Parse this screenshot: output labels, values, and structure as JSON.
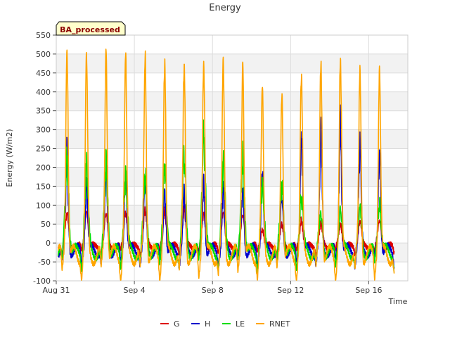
{
  "chart_data": {
    "type": "line",
    "title": "Energy",
    "xlabel": "Time",
    "ylabel": "Energy (W/m2)",
    "badge": "BA_processed",
    "ylim": [
      -100,
      550
    ],
    "xlim_days": [
      "2023-08-31",
      "2023-09-18"
    ],
    "y_ticks": [
      "-100",
      "-50",
      "0",
      "50",
      "100",
      "150",
      "200",
      "250",
      "300",
      "350",
      "400",
      "450",
      "500",
      "550"
    ],
    "x_ticks": [
      {
        "date": "2023-08-31",
        "label": "Aug 31"
      },
      {
        "date": "2023-09-04",
        "label": "Sep 4"
      },
      {
        "date": "2023-09-08",
        "label": "Sep 8"
      },
      {
        "date": "2023-09-12",
        "label": "Sep 12"
      },
      {
        "date": "2023-09-16",
        "label": "Sep 16"
      }
    ],
    "grid": true,
    "legend_position": "bottom",
    "colors": {
      "G": "#dd0000",
      "H": "#0000cc",
      "LE": "#00dd00",
      "RNET": "#ffa500",
      "band": "#f2f2f2",
      "badge_bg": "#ffffcc",
      "badge_text": "#8b0000"
    },
    "days": [
      "Aug 31",
      "Sep 1",
      "Sep 2",
      "Sep 3",
      "Sep 4",
      "Sep 5",
      "Sep 6",
      "Sep 7",
      "Sep 8",
      "Sep 9",
      "Sep 10",
      "Sep 11",
      "Sep 12",
      "Sep 13",
      "Sep 14",
      "Sep 15",
      "Sep 16",
      "Sep 17"
    ],
    "series": [
      {
        "name": "G",
        "daily_peak": [
          78,
          85,
          78,
          80,
          85,
          82,
          88,
          78,
          82,
          75,
          35,
          48,
          58,
          50,
          48,
          58,
          60,
          55
        ],
        "night_min": -25
      },
      {
        "name": "H",
        "daily_peak": [
          230,
          150,
          190,
          175,
          165,
          140,
          130,
          145,
          140,
          140,
          190,
          125,
          275,
          290,
          305,
          255,
          240,
          20
        ],
        "night_min": -50
      },
      {
        "name": "LE",
        "daily_peak": [
          220,
          200,
          200,
          175,
          175,
          205,
          225,
          275,
          205,
          215,
          150,
          155,
          120,
          75,
          85,
          90,
          100,
          20
        ],
        "night_min": -60
      },
      {
        "name": "RNET",
        "daily_peak": [
          510,
          497,
          507,
          493,
          493,
          478,
          475,
          474,
          478,
          467,
          410,
          393,
          447,
          483,
          484,
          452,
          450,
          20
        ],
        "night_min": -80
      }
    ]
  }
}
